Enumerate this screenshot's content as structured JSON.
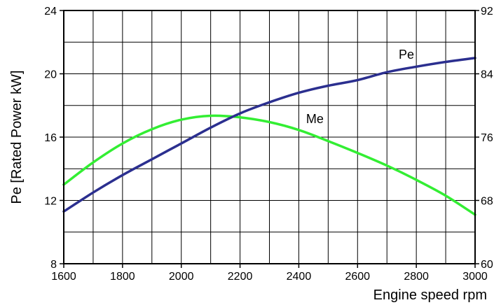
{
  "chart_data": {
    "type": "line",
    "title": "",
    "xlabel": "Engine speed rpm",
    "ylabel": "Pe [Rated Power kW]",
    "x_ticks": [
      "1600",
      "1800",
      "2000",
      "2200",
      "2400",
      "2600",
      "2800",
      "3000"
    ],
    "y_ticks": [
      "8",
      "12",
      "16",
      "20",
      "24"
    ],
    "y2_ticks": [
      "60",
      "68",
      "76",
      "84",
      "92"
    ],
    "xlim": [
      1600,
      3000
    ],
    "ylim": [
      8,
      24
    ],
    "y2lim": [
      60,
      92
    ],
    "grid": true,
    "series": [
      {
        "name": "Pe",
        "axis": "left",
        "color": "#2b2f8f",
        "x": [
          1600,
          1700,
          1800,
          1900,
          2000,
          2100,
          2200,
          2300,
          2400,
          2500,
          2600,
          2700,
          2800,
          2900,
          3000
        ],
        "y": [
          11.3,
          12.5,
          13.6,
          14.6,
          15.6,
          16.6,
          17.5,
          18.2,
          18.8,
          19.25,
          19.6,
          20.1,
          20.45,
          20.75,
          21.0
        ]
      },
      {
        "name": "Me",
        "axis": "left",
        "color": "#33ee33",
        "x": [
          1600,
          1700,
          1800,
          1900,
          2000,
          2100,
          2200,
          2300,
          2400,
          2500,
          2600,
          2700,
          2800,
          2900,
          3000
        ],
        "y": [
          13.0,
          14.4,
          15.6,
          16.5,
          17.1,
          17.35,
          17.25,
          16.95,
          16.45,
          15.75,
          15.0,
          14.2,
          13.3,
          12.3,
          11.1
        ]
      }
    ]
  }
}
